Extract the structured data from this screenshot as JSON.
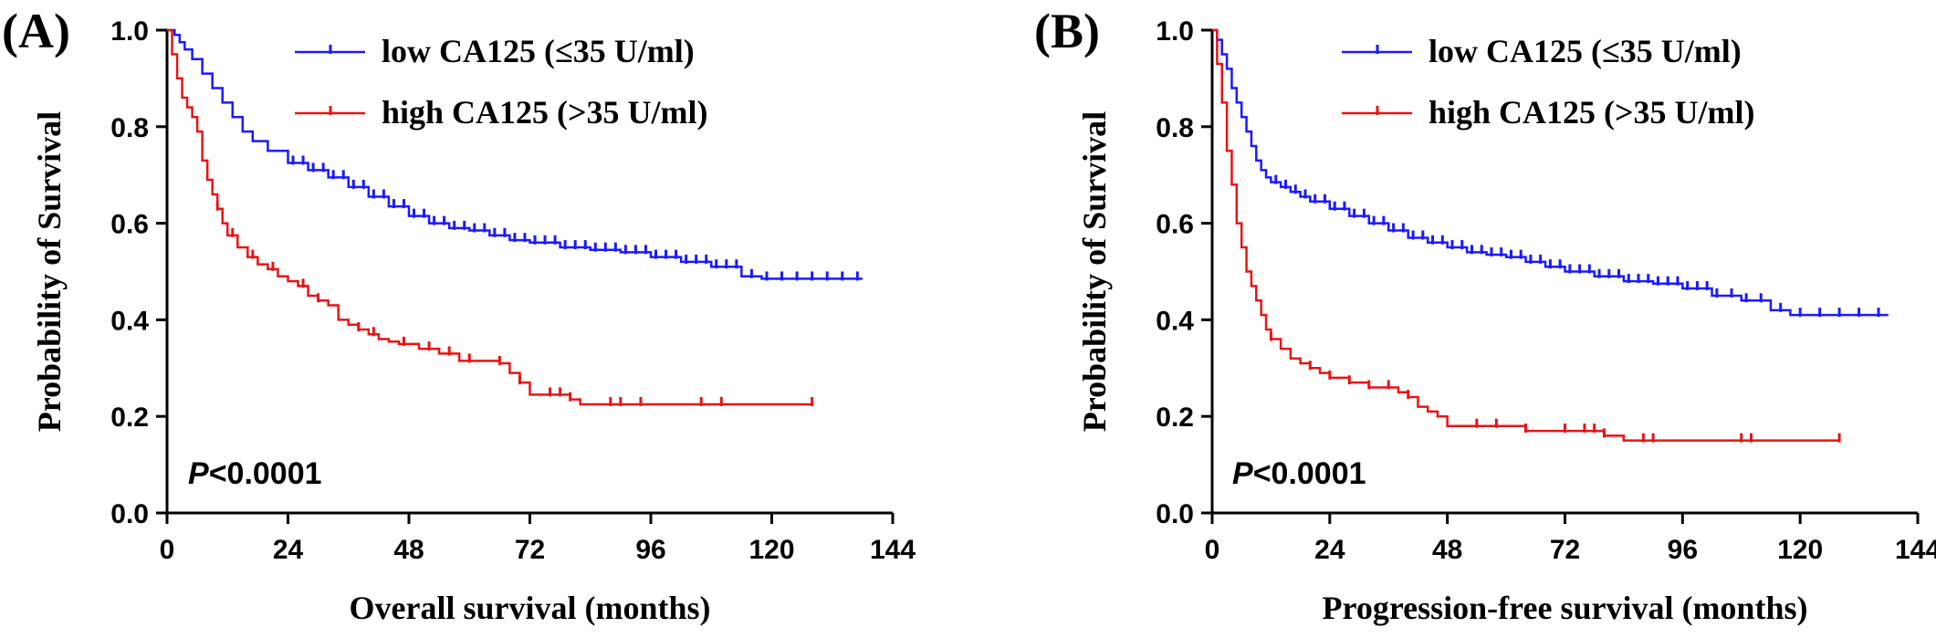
{
  "chart_data": [
    {
      "panel_label": "(A)",
      "type": "line",
      "subtype": "kaplan-meier",
      "title": "",
      "xlabel": "Overall survival (months)",
      "ylabel": "Probability of Survival",
      "xlim": [
        0,
        144
      ],
      "ylim": [
        0,
        1
      ],
      "xticks": [
        0,
        24,
        48,
        72,
        96,
        120,
        144
      ],
      "xtick_labels": [
        "0",
        "24",
        "48",
        "72",
        "96",
        "120",
        "144"
      ],
      "yticks": [
        0,
        0.2,
        0.4,
        0.6,
        0.8,
        1.0
      ],
      "ytick_labels": [
        "0.0",
        "0.2",
        "0.4",
        "0.6",
        "0.8",
        "1.0"
      ],
      "legend_position": "top-right",
      "annotation": {
        "italic": "P",
        "text": "<0.0001"
      },
      "series": [
        {
          "name": "low CA125 (≤35 U/ml)",
          "color": "#1a1aff",
          "x": [
            0,
            1.5,
            2.5,
            3.5,
            5,
            7,
            9,
            11,
            13,
            15,
            17,
            20,
            24,
            28,
            32,
            36,
            40,
            44,
            48,
            52,
            56,
            60,
            64,
            68,
            72,
            78,
            84,
            90,
            96,
            102,
            108,
            114,
            118,
            123,
            128,
            134,
            138
          ],
          "y": [
            1.0,
            0.99,
            0.975,
            0.96,
            0.94,
            0.91,
            0.88,
            0.85,
            0.82,
            0.79,
            0.77,
            0.75,
            0.725,
            0.71,
            0.695,
            0.675,
            0.655,
            0.635,
            0.615,
            0.6,
            0.59,
            0.585,
            0.575,
            0.565,
            0.56,
            0.55,
            0.545,
            0.54,
            0.53,
            0.52,
            0.51,
            0.49,
            0.485,
            0.485,
            0.485,
            0.485,
            0.485
          ],
          "censor_x": [
            25,
            27,
            29,
            31,
            33,
            35,
            37,
            39,
            41,
            43,
            45,
            47,
            49,
            51,
            53,
            55,
            57,
            59,
            61,
            63,
            65,
            67,
            69,
            71,
            73,
            75,
            77,
            79,
            81,
            83,
            85,
            87,
            89,
            91,
            93,
            95,
            97,
            99,
            101,
            103,
            105,
            107,
            109,
            111,
            113,
            116,
            119,
            122,
            125,
            128,
            131,
            134,
            137
          ]
        },
        {
          "name": "high CA125 (>35 U/ml)",
          "color": "#e81414",
          "x": [
            0,
            1,
            2,
            3,
            4,
            5,
            6,
            7,
            8,
            9,
            10,
            11,
            12,
            14,
            16,
            18,
            20,
            22,
            24,
            26,
            28,
            30,
            32,
            34,
            36,
            38,
            40,
            42,
            44,
            46,
            50,
            54,
            58,
            62,
            66,
            68,
            70,
            72,
            76,
            80,
            82,
            100,
            110,
            120,
            128
          ],
          "y": [
            1.0,
            0.95,
            0.9,
            0.86,
            0.84,
            0.82,
            0.79,
            0.73,
            0.69,
            0.66,
            0.63,
            0.6,
            0.575,
            0.55,
            0.53,
            0.515,
            0.505,
            0.49,
            0.48,
            0.47,
            0.45,
            0.44,
            0.43,
            0.4,
            0.39,
            0.38,
            0.37,
            0.36,
            0.355,
            0.35,
            0.34,
            0.33,
            0.315,
            0.315,
            0.31,
            0.29,
            0.27,
            0.245,
            0.245,
            0.235,
            0.225,
            0.225,
            0.225,
            0.225,
            0.225
          ],
          "censor_x": [
            10,
            13,
            17,
            21,
            27,
            30,
            38,
            41,
            47,
            52,
            56,
            60,
            66,
            70,
            76,
            78,
            80,
            88,
            90,
            94,
            106,
            110,
            128
          ]
        }
      ]
    },
    {
      "panel_label": "(B)",
      "type": "line",
      "subtype": "kaplan-meier",
      "title": "",
      "xlabel": "Progression-free survival  (months)",
      "ylabel": "Probability of Survival",
      "xlim": [
        0,
        144
      ],
      "ylim": [
        0,
        1
      ],
      "xticks": [
        0,
        24,
        48,
        72,
        96,
        120,
        144
      ],
      "xtick_labels": [
        "0",
        "24",
        "48",
        "72",
        "96",
        "120",
        "144"
      ],
      "yticks": [
        0,
        0.2,
        0.4,
        0.6,
        0.8,
        1.0
      ],
      "ytick_labels": [
        "0.0",
        "0.2",
        "0.4",
        "0.6",
        "0.8",
        "1.0"
      ],
      "legend_position": "top-right",
      "annotation": {
        "italic": "P",
        "text": "<0.0001"
      },
      "series": [
        {
          "name": "low CA125 (≤35 U/ml)",
          "color": "#1a1aff",
          "x": [
            0,
            1,
            2,
            3,
            4,
            5,
            6,
            7,
            8,
            9,
            10,
            11,
            12,
            14,
            16,
            18,
            20,
            24,
            28,
            32,
            36,
            40,
            44,
            48,
            52,
            56,
            60,
            64,
            68,
            72,
            78,
            84,
            90,
            96,
            102,
            108,
            114,
            118,
            124,
            130,
            138
          ],
          "y": [
            1.0,
            0.98,
            0.95,
            0.92,
            0.88,
            0.85,
            0.82,
            0.79,
            0.76,
            0.73,
            0.71,
            0.695,
            0.685,
            0.675,
            0.665,
            0.655,
            0.645,
            0.63,
            0.615,
            0.6,
            0.585,
            0.57,
            0.56,
            0.55,
            0.54,
            0.535,
            0.53,
            0.52,
            0.51,
            0.5,
            0.49,
            0.48,
            0.475,
            0.465,
            0.45,
            0.44,
            0.42,
            0.41,
            0.41,
            0.41,
            0.41
          ],
          "censor_x": [
            13,
            15,
            17,
            19,
            21,
            23,
            25,
            27,
            29,
            31,
            33,
            35,
            37,
            39,
            41,
            43,
            45,
            47,
            49,
            51,
            53,
            55,
            57,
            59,
            61,
            63,
            65,
            67,
            69,
            71,
            73,
            75,
            77,
            79,
            81,
            83,
            85,
            87,
            89,
            91,
            93,
            95,
            97,
            99,
            101,
            103,
            106,
            109,
            112,
            116,
            120,
            124,
            128,
            132,
            136
          ]
        },
        {
          "name": "high CA125 (>35 U/ml)",
          "color": "#e81414",
          "x": [
            0,
            1,
            2,
            3,
            4,
            5,
            6,
            7,
            8,
            9,
            10,
            11,
            12,
            14,
            16,
            18,
            20,
            22,
            24,
            28,
            32,
            36,
            38,
            40,
            42,
            44,
            46,
            48,
            56,
            64,
            72,
            80,
            84,
            100,
            110,
            120,
            128
          ],
          "y": [
            1.0,
            0.93,
            0.85,
            0.75,
            0.68,
            0.6,
            0.55,
            0.5,
            0.47,
            0.44,
            0.41,
            0.38,
            0.36,
            0.34,
            0.32,
            0.31,
            0.3,
            0.29,
            0.28,
            0.27,
            0.26,
            0.26,
            0.25,
            0.24,
            0.22,
            0.21,
            0.2,
            0.18,
            0.18,
            0.17,
            0.17,
            0.16,
            0.15,
            0.15,
            0.15,
            0.15,
            0.15
          ],
          "censor_x": [
            12,
            20,
            24,
            28,
            32,
            36,
            40,
            54,
            58,
            64,
            72,
            76,
            78,
            80,
            88,
            90,
            108,
            110,
            128
          ]
        }
      ]
    }
  ]
}
